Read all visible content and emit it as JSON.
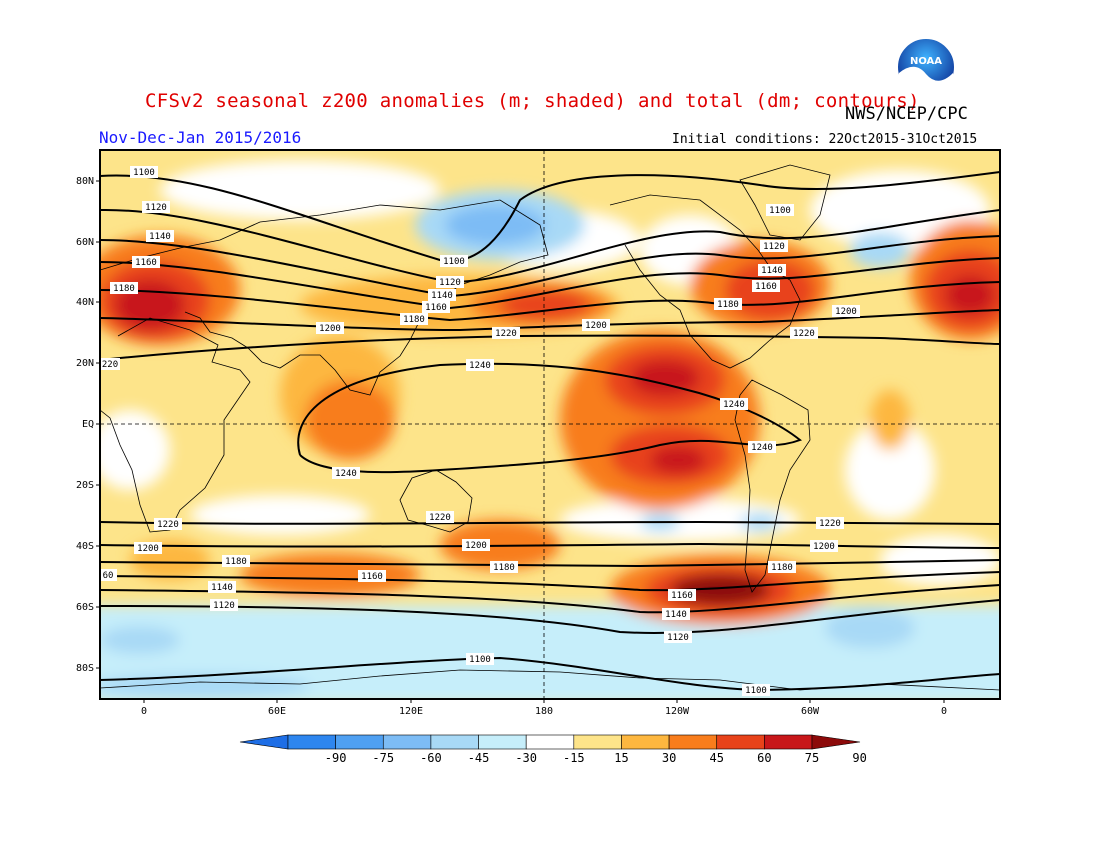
{
  "title": "CFSv2 seasonal z200 anomalies (m; shaded) and total (dm; contours)",
  "agency": "NWS/NCEP/CPC",
  "period": "Nov-Dec-Jan 2015/2016",
  "initial_conditions": "Initial conditions: 22Oct2015-31Oct2015",
  "logo_text": "NOAA",
  "lat_labels": [
    "80N",
    "60N",
    "40N",
    "20N",
    "EQ",
    "20S",
    "40S",
    "60S",
    "80S"
  ],
  "lon_labels": [
    "0",
    "60E",
    "120E",
    "180",
    "120W",
    "60W",
    "0"
  ],
  "colorbar": {
    "labels": [
      "-90",
      "-75",
      "-60",
      "-45",
      "-30",
      "-15",
      "15",
      "30",
      "45",
      "60",
      "75",
      "90"
    ],
    "colors": [
      "#1e6ee6",
      "#2e86ef",
      "#4fa0f2",
      "#7dbcf5",
      "#a8d9f6",
      "#c6eefa",
      "#ffffff",
      "#fde48a",
      "#fdb73f",
      "#f87d1c",
      "#e8431a",
      "#c8171a",
      "#8c0a0a"
    ]
  },
  "contour_labels": {
    "c1100": "1100",
    "c1120": "1120",
    "c1140": "1140",
    "c1160": "1160",
    "c1180": "1180",
    "c1200": "1200",
    "c1220": "1220",
    "c1240": "1240",
    "c220": "220",
    "c60": "60"
  }
}
